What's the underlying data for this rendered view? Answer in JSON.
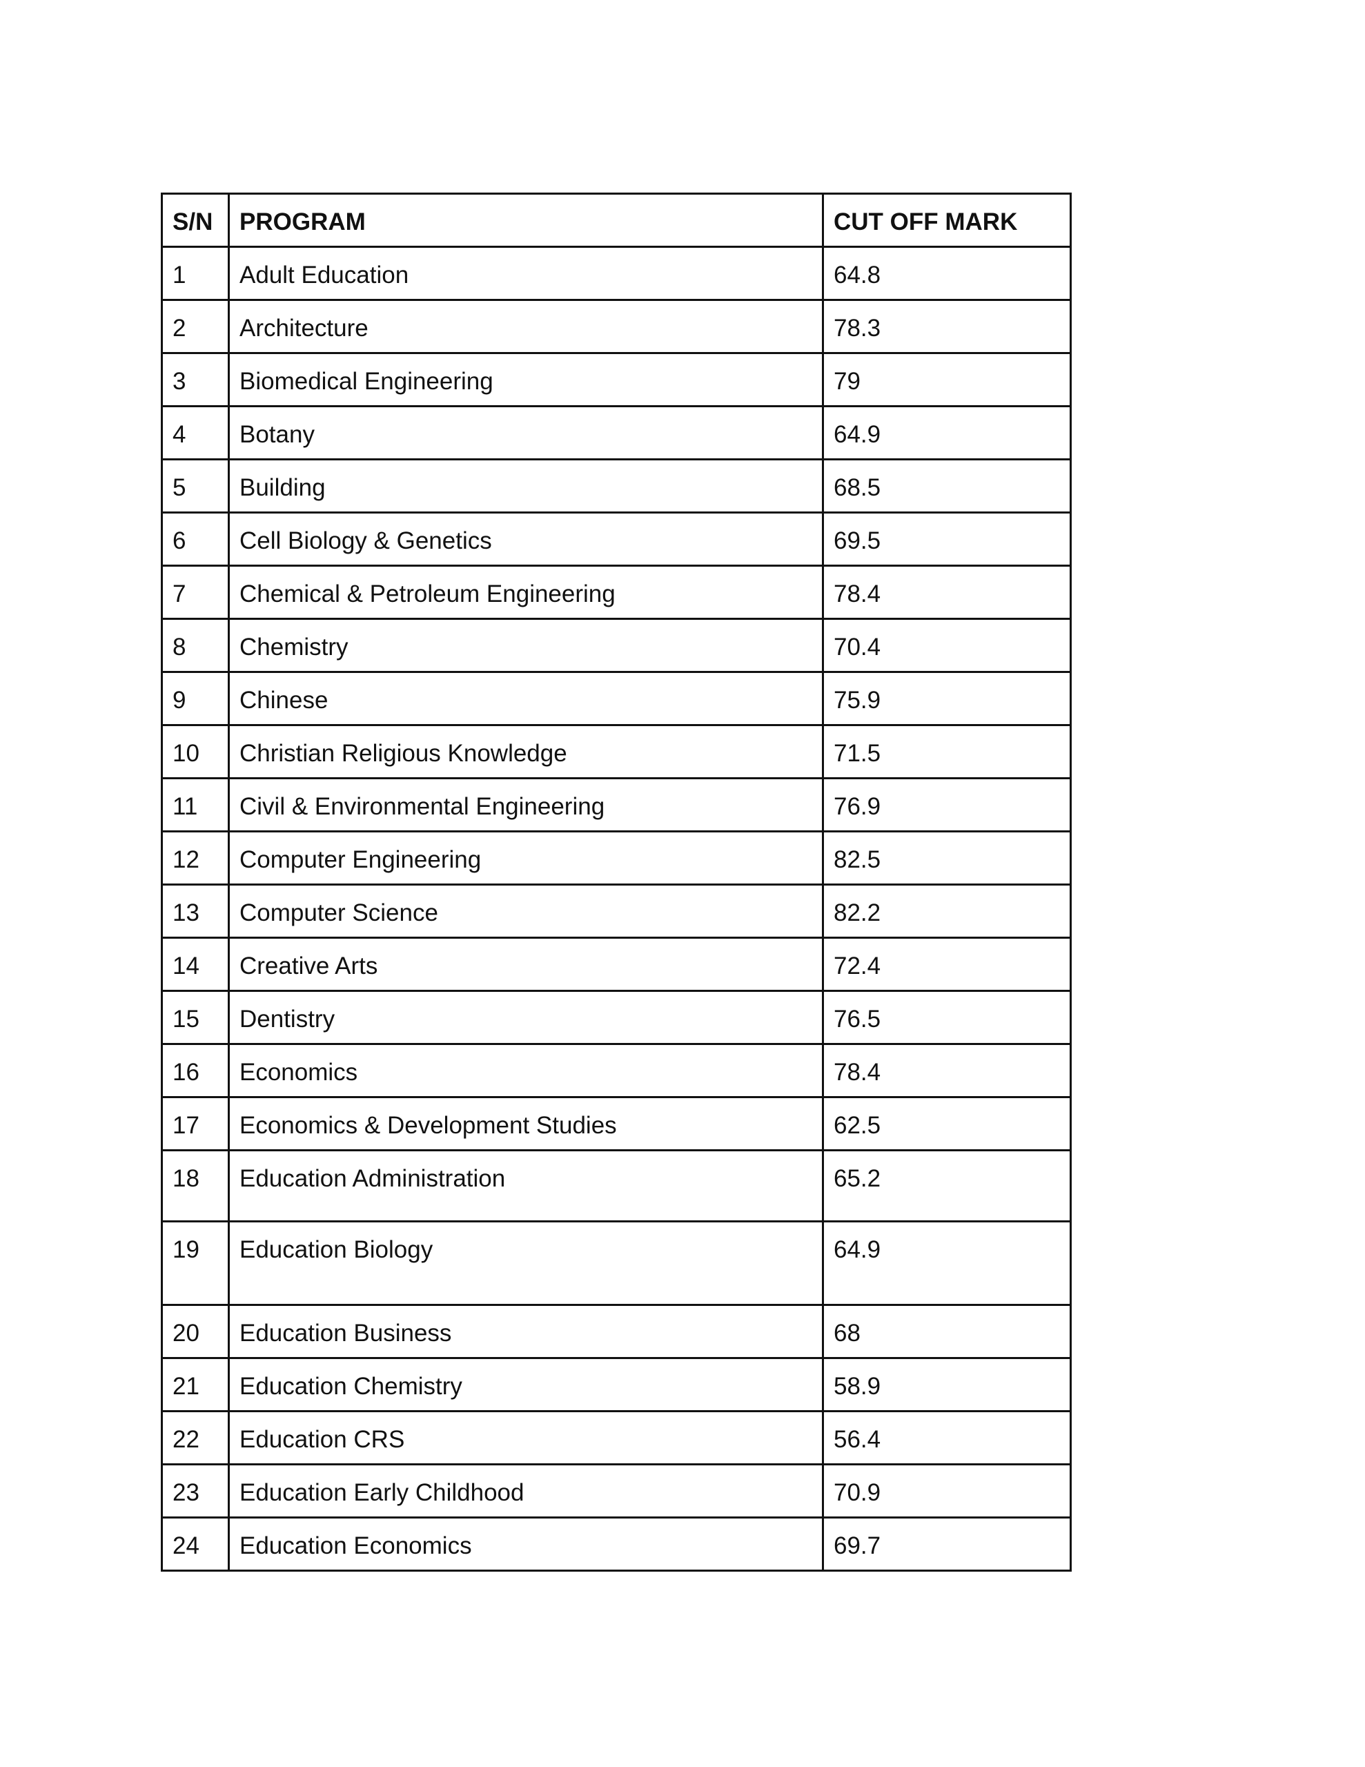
{
  "table": {
    "headers": [
      "S/N",
      "PROGRAM",
      "CUT OFF MARK"
    ],
    "rows": [
      [
        "1",
        "Adult Education",
        "64.8"
      ],
      [
        "2",
        "Architecture",
        "78.3"
      ],
      [
        "3",
        "Biomedical Engineering",
        "79"
      ],
      [
        "4",
        "Botany",
        "64.9"
      ],
      [
        "5",
        "Building",
        "68.5"
      ],
      [
        "6",
        "Cell Biology & Genetics",
        "69.5"
      ],
      [
        "7",
        "Chemical & Petroleum Engineering",
        "78.4"
      ],
      [
        "8",
        "Chemistry",
        "70.4"
      ],
      [
        "9",
        "Chinese",
        "75.9"
      ],
      [
        "10",
        "Christian Religious Knowledge",
        "71.5"
      ],
      [
        "11",
        "Civil & Environmental Engineering",
        "76.9"
      ],
      [
        "12",
        "Computer Engineering",
        "82.5"
      ],
      [
        "13",
        "Computer Science",
        "82.2"
      ],
      [
        "14",
        "Creative Arts",
        "72.4"
      ],
      [
        "15",
        "Dentistry",
        "76.5"
      ],
      [
        "16",
        "Economics",
        "78.4"
      ],
      [
        "17",
        "Economics & Development Studies",
        "62.5"
      ],
      [
        "18",
        "Education Administration",
        "65.2"
      ],
      [
        "19",
        "Education Biology",
        "64.9"
      ],
      [
        "20",
        "Education Business",
        "68"
      ],
      [
        "21",
        "Education Chemistry",
        "58.9"
      ],
      [
        "22",
        "Education CRS",
        "56.4"
      ],
      [
        "23",
        "Education Early Childhood",
        "70.9"
      ],
      [
        "24",
        "Education Economics",
        "69.7"
      ]
    ]
  }
}
